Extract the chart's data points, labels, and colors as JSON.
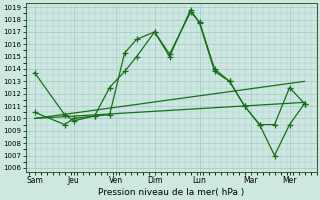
{
  "background_color": "#cce8e0",
  "grid_color": "#aacccc",
  "line_color": "#1a6e1a",
  "xlabel": "Pression niveau de la mer( hPa )",
  "ylim": [
    1006,
    1019
  ],
  "yticks": [
    1006,
    1007,
    1008,
    1009,
    1010,
    1011,
    1012,
    1013,
    1014,
    1015,
    1016,
    1017,
    1018,
    1019
  ],
  "x_labels": [
    "Sam",
    "Jeu",
    "Ven",
    "Dim",
    "Lun",
    "Mar",
    "Mer"
  ],
  "x_tick_pos": [
    0,
    1,
    2,
    3,
    4,
    5,
    6
  ],
  "series1_x": [
    0,
    0.5,
    0.65,
    1.0,
    1.25,
    1.5,
    1.7,
    2.0,
    2.25,
    2.6,
    2.75,
    3.0,
    3.25,
    3.5,
    3.75,
    4.0,
    4.25,
    4.5
  ],
  "series1_y": [
    1013.7,
    1010.3,
    1009.8,
    1010.2,
    1010.3,
    1015.3,
    1016.4,
    1017.0,
    1015.2,
    1018.6,
    1017.8,
    1014.0,
    1013.0,
    1011.0,
    1009.5,
    1009.5,
    1012.5,
    1011.2
  ],
  "series2_x": [
    0,
    0.5,
    0.65,
    1.0,
    1.25,
    1.5,
    1.7,
    2.0,
    2.25,
    2.6,
    2.75,
    3.0,
    3.25,
    3.5,
    3.75,
    4.0,
    4.25,
    4.5
  ],
  "series2_y": [
    1010.5,
    1009.5,
    1010.0,
    1010.2,
    1012.5,
    1013.8,
    1015.0,
    1017.0,
    1015.0,
    1018.8,
    1017.7,
    1013.8,
    1013.0,
    1011.0,
    1009.5,
    1007.0,
    1009.5,
    1011.2
  ],
  "line1_x": [
    0,
    4.5
  ],
  "line1_y": [
    1010.0,
    1013.0
  ],
  "line2_x": [
    0,
    4.5
  ],
  "line2_y": [
    1010.0,
    1011.3
  ],
  "xlim": [
    -0.15,
    4.7
  ]
}
